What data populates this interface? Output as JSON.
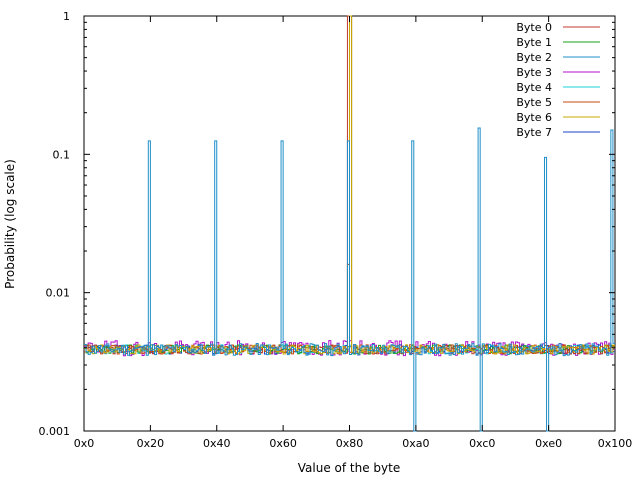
{
  "chart_data": {
    "type": "line",
    "title": "",
    "xlabel": "Value of the byte",
    "ylabel": "Probability (log scale)",
    "xlim": [
      0,
      256
    ],
    "ylim": [
      0.001,
      1
    ],
    "yscale": "log",
    "grid": false,
    "legend_position": "top-right",
    "xticks": [
      {
        "value": 0,
        "label": "0x0"
      },
      {
        "value": 32,
        "label": "0x20"
      },
      {
        "value": 64,
        "label": "0x40"
      },
      {
        "value": 96,
        "label": "0x60"
      },
      {
        "value": 128,
        "label": "0x80"
      },
      {
        "value": 160,
        "label": "0xa0"
      },
      {
        "value": 192,
        "label": "0xc0"
      },
      {
        "value": 224,
        "label": "0xe0"
      },
      {
        "value": 256,
        "label": "0x100"
      }
    ],
    "yticks": [
      {
        "value": 1,
        "label": "1"
      },
      {
        "value": 0.1,
        "label": "0.1"
      },
      {
        "value": 0.01,
        "label": "0.01"
      },
      {
        "value": 0.001,
        "label": "0.001"
      }
    ],
    "series": [
      {
        "name": "Byte 0",
        "color": "#c0392b",
        "style": "step",
        "baseline": 0.0039,
        "noise": 0.0003,
        "seed": 3,
        "spikes": [
          {
            "x": 127,
            "y": 1.0
          }
        ]
      },
      {
        "name": "Byte 1",
        "color": "#18a01c",
        "style": "step",
        "baseline": 0.0039,
        "noise": 0.0003,
        "seed": 7,
        "spikes": [
          {
            "x": 128,
            "y": 1.0
          }
        ]
      },
      {
        "name": "Byte 2",
        "color": "#1f8fc8",
        "style": "step",
        "baseline": 0.0039,
        "noise": 0.0004,
        "seed": 11,
        "spikes": [
          {
            "x": 31,
            "y": 0
          },
          {
            "x": 63,
            "y": 0
          },
          {
            "x": 95,
            "y": 0
          },
          {
            "x": 127,
            "y": 0
          },
          {
            "x": 159,
            "y": 0
          },
          {
            "x": 191,
            "y": 0
          },
          {
            "x": 223,
            "y": 0
          }
        ]
      },
      {
        "name": "Byte 3",
        "color": "#b010c8",
        "style": "step",
        "baseline": 0.004,
        "noise": 0.0005,
        "seed": 19,
        "spikes": []
      },
      {
        "name": "Byte 4",
        "color": "#18d0d8",
        "style": "step",
        "baseline": 0.0039,
        "noise": 0.0003,
        "seed": 23,
        "spikes": []
      },
      {
        "name": "Byte 5",
        "color": "#c84810",
        "style": "step",
        "baseline": 0.0039,
        "noise": 0.0003,
        "seed": 29,
        "spikes": [
          {
            "x": 127,
            "y": 0.016
          },
          {
            "x": 128,
            "y": 1.0
          }
        ]
      },
      {
        "name": "Byte 6",
        "color": "#c8a800",
        "style": "step",
        "baseline": 0.0039,
        "noise": 0.0003,
        "seed": 31,
        "spikes": [
          {
            "x": 128,
            "y": 1.0
          }
        ]
      },
      {
        "name": "Byte 7",
        "color": "#1840c8",
        "style": "step",
        "baseline": 0.0039,
        "noise": 0.0003,
        "seed": 37,
        "spikes": []
      }
    ],
    "tall_spikes": {
      "series": "Byte 2",
      "color": "#1f8fc8",
      "points": [
        {
          "x": 25,
          "y": 0.125
        },
        {
          "x": 51,
          "y": 0.125
        },
        {
          "x": 77,
          "y": 0.125
        },
        {
          "x": 103,
          "y": 0.125
        },
        {
          "x": 128,
          "y": 0.125
        },
        {
          "x": 154,
          "y": 0.155
        },
        {
          "x": 180,
          "y": 0.095
        },
        {
          "x": 206,
          "y": 0.15
        }
      ]
    }
  }
}
